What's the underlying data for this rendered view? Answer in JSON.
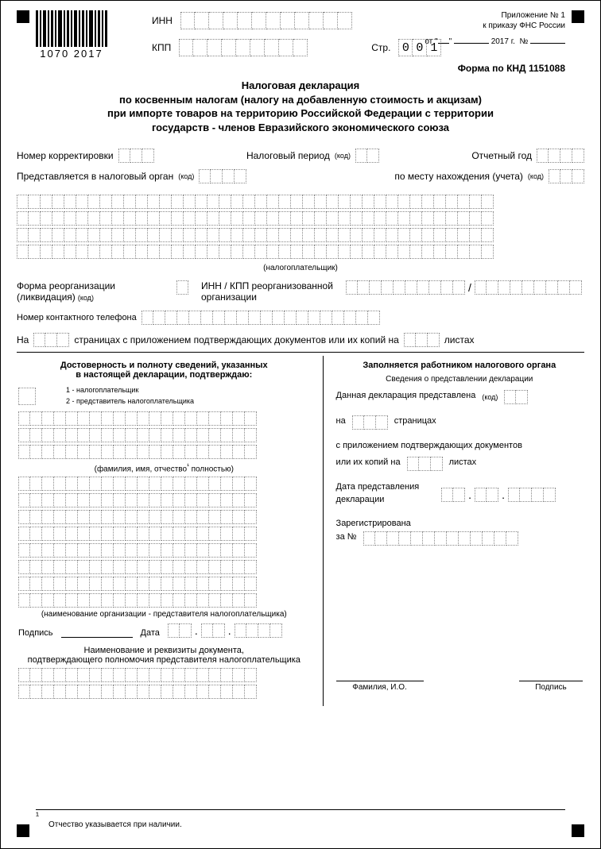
{
  "header": {
    "inn_label": "ИНН",
    "kpp_label": "КПП",
    "page_label": "Стр.",
    "page_digits": [
      "0",
      "0",
      "1"
    ],
    "annex_line1": "Приложение № 1",
    "annex_line2": "к приказу ФНС России",
    "ot": "от",
    "year": "2017 г.",
    "numero": "№",
    "form_code": "Форма по КНД 1151088",
    "barcode_number": "1070 2017"
  },
  "title": {
    "l1": "Налоговая декларация",
    "l2": "по косвенным налогам (налогу на добавленную стоимость и акцизам)",
    "l3": "при импорте товаров на территорию Российской Федерации с территории",
    "l4": "государств - членов Евразийского экономического союза"
  },
  "fields": {
    "korrekt": "Номер корректировки",
    "nalog_period": "Налоговый период",
    "kod": "(код)",
    "otch_god": "Отчетный год",
    "predstav": "Представляется в налоговый орган",
    "po_mestu": "по месту нахождения (учета)",
    "nalogoplat": "(налогоплательщик)",
    "forma_reorg1": "Форма реорганизации",
    "forma_reorg2": "(ликвидация)",
    "inn_kpp_reorg1": "ИНН / КПП реорганизованной",
    "inn_kpp_reorg2": "организации",
    "contact_phone": "Номер контактного телефона",
    "na": "На",
    "pages_text": "страницах с приложением подтверждающих документов или их копий на",
    "listah": "листах"
  },
  "left_col": {
    "title1": "Достоверность и полноту сведений, указанных",
    "title2": "в настоящей декларации, подтверждаю:",
    "legend1": "1 - налогоплательщик",
    "legend2": "2 - представитель налогоплательщика",
    "fio_note": "(фамилия, имя, отчество",
    "fio_note_star": "¹",
    "fio_note2": "полностью)",
    "org_note": "(наименование организации - представителя налогоплательщика)",
    "podpis": "Подпись",
    "data": "Дата",
    "doc_title1": "Наименование и реквизиты документа,",
    "doc_title2": "подтверждающего полномочия представителя налогоплательщика"
  },
  "right_col": {
    "title": "Заполняется работником налогового органа",
    "subtitle": "Сведения о представлении декларации",
    "pred": "Данная декларация представлена",
    "na": "на",
    "stranicah": "страницах",
    "attach": "с приложением подтверждающих документов",
    "or_copies": "или их копий на",
    "listah": "листах",
    "date_pred1": "Дата представления",
    "date_pred2": "декларации",
    "zareg": "Зарегистрирована",
    "za_no": "за №",
    "fio": "Фамилия, И.О.",
    "podpis": "Подпись"
  },
  "footer": {
    "star": "¹",
    "note": "Отчество указывается при наличии."
  },
  "style": {
    "cell_border_color": "#888888",
    "text_color": "#000000",
    "font_family": "Arial"
  }
}
